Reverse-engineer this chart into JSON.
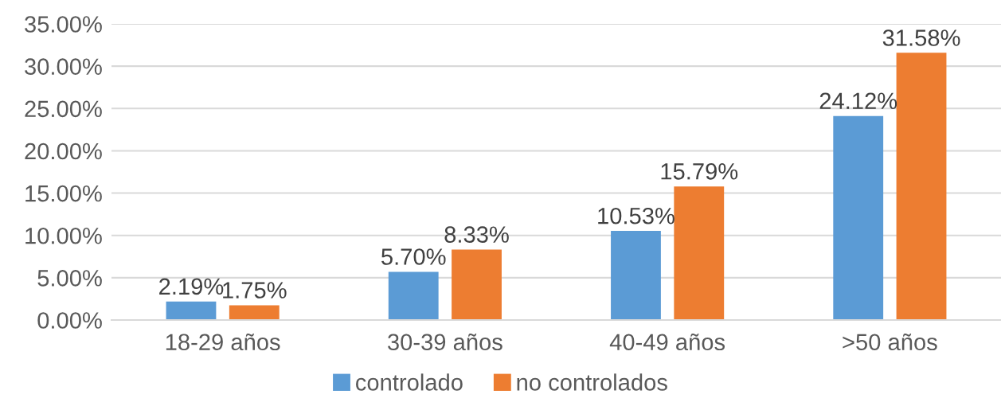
{
  "chart_data": {
    "type": "bar",
    "categories": [
      "18-29 años",
      "30-39 años",
      "40-49 años",
      ">50 años"
    ],
    "series": [
      {
        "name": "controlado",
        "color": "#5b9bd5",
        "values": [
          2.19,
          5.7,
          10.53,
          24.12
        ],
        "value_labels": [
          "2.19%",
          "5.70%",
          "10.53%",
          "24.12%"
        ]
      },
      {
        "name": "no controlados",
        "color": "#ed7d31",
        "values": [
          1.75,
          8.33,
          15.79,
          31.58
        ],
        "value_labels": [
          "1.75%",
          "8.33%",
          "15.79%",
          "31.58%"
        ]
      }
    ],
    "ylim": [
      0,
      35
    ],
    "yticks": [
      {
        "value": 0,
        "label": "0.00%"
      },
      {
        "value": 5,
        "label": "5.00%"
      },
      {
        "value": 10,
        "label": "10.00%"
      },
      {
        "value": 15,
        "label": "15.00%"
      },
      {
        "value": 20,
        "label": "20.00%"
      },
      {
        "value": 25,
        "label": "25.00%"
      },
      {
        "value": 30,
        "label": "30.00%"
      },
      {
        "value": 35,
        "label": "35.00%"
      }
    ],
    "grid": "y",
    "legend": "bottom"
  }
}
